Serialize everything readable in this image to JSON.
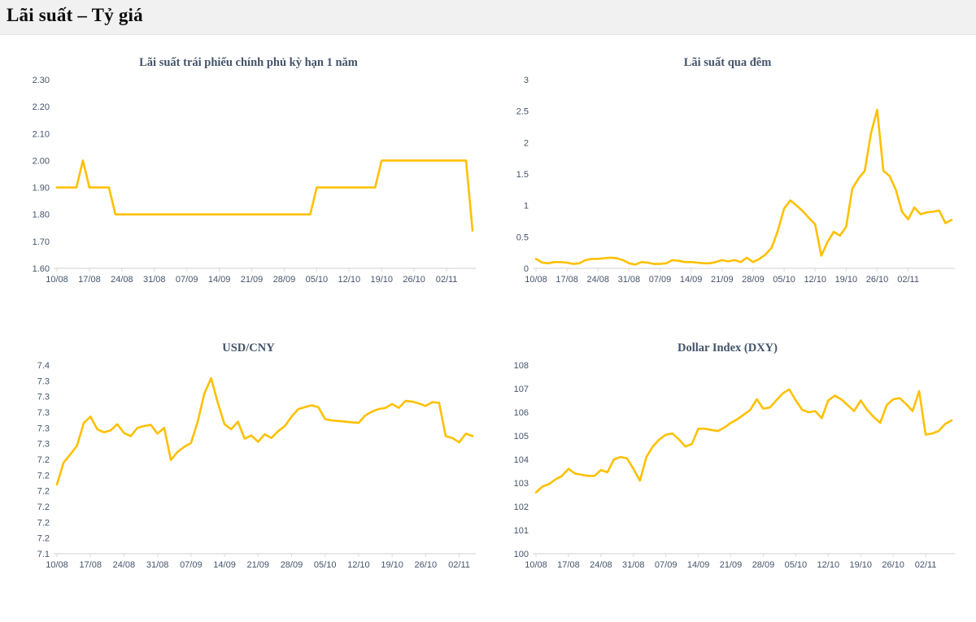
{
  "header": {
    "title": "Lãi suất – Tỷ giá"
  },
  "axis_style": {
    "label_color": "#44546A",
    "axis_line_color": "#D9D9D9"
  },
  "chart_data": [
    {
      "id": "bond-yield-1y",
      "type": "line",
      "title": "Lãi suất trái phiếu chính phủ kỳ hạn 1 năm",
      "color": "#FFC000",
      "legend": "none",
      "grid": false,
      "xlabel": "",
      "ylabel": "",
      "x_tick_labels": [
        "10/08",
        "17/08",
        "24/08",
        "31/08",
        "07/09",
        "14/09",
        "21/09",
        "28/09",
        "05/10",
        "12/10",
        "19/10",
        "26/10",
        "02/11"
      ],
      "y_tick_labels": [
        "2.30",
        "2.20",
        "2.10",
        "2.00",
        "1.90",
        "1.80",
        "1.70",
        "1.60"
      ],
      "ylim": [
        1.6,
        2.3
      ],
      "values": [
        1.9,
        1.9,
        1.9,
        1.9,
        2.0,
        1.9,
        1.9,
        1.9,
        1.9,
        1.8,
        1.8,
        1.8,
        1.8,
        1.8,
        1.8,
        1.8,
        1.8,
        1.8,
        1.8,
        1.8,
        1.8,
        1.8,
        1.8,
        1.8,
        1.8,
        1.8,
        1.8,
        1.8,
        1.8,
        1.8,
        1.8,
        1.8,
        1.8,
        1.8,
        1.8,
        1.8,
        1.8,
        1.8,
        1.8,
        1.8,
        1.9,
        1.9,
        1.9,
        1.9,
        1.9,
        1.9,
        1.9,
        1.9,
        1.9,
        1.9,
        2.0,
        2.0,
        2.0,
        2.0,
        2.0,
        2.0,
        2.0,
        2.0,
        2.0,
        2.0,
        2.0,
        2.0,
        2.0,
        2.0,
        1.74
      ]
    },
    {
      "id": "overnight-rate",
      "type": "line",
      "title": "Lãi suất qua đêm",
      "color": "#FFC000",
      "legend": "none",
      "grid": false,
      "xlabel": "",
      "ylabel": "",
      "x_tick_labels": [
        "10/08",
        "17/08",
        "24/08",
        "31/08",
        "07/09",
        "14/09",
        "21/09",
        "28/09",
        "05/10",
        "12/10",
        "19/10",
        "26/10",
        "02/11"
      ],
      "y_tick_labels": [
        "3",
        "2.5",
        "2",
        "1.5",
        "1",
        "0.5",
        "0"
      ],
      "ylim": [
        0,
        3
      ],
      "values": [
        0.15,
        0.09,
        0.08,
        0.1,
        0.1,
        0.09,
        0.07,
        0.08,
        0.13,
        0.15,
        0.15,
        0.16,
        0.17,
        0.16,
        0.13,
        0.08,
        0.06,
        0.1,
        0.09,
        0.07,
        0.07,
        0.08,
        0.13,
        0.12,
        0.1,
        0.1,
        0.09,
        0.08,
        0.08,
        0.1,
        0.13,
        0.11,
        0.13,
        0.1,
        0.17,
        0.1,
        0.15,
        0.22,
        0.33,
        0.6,
        0.95,
        1.08,
        1.0,
        0.91,
        0.8,
        0.7,
        0.2,
        0.42,
        0.58,
        0.52,
        0.66,
        1.27,
        1.43,
        1.55,
        2.15,
        2.52,
        1.55,
        1.47,
        1.25,
        0.9,
        0.78,
        0.97,
        0.86,
        0.89,
        0.9,
        0.92,
        0.72,
        0.77
      ]
    },
    {
      "id": "usd-cny",
      "type": "line",
      "title": "USD/CNY",
      "color": "#FFC000",
      "legend": "none",
      "grid": false,
      "xlabel": "",
      "ylabel": "",
      "x_tick_labels": [
        "10/08",
        "17/08",
        "24/08",
        "31/08",
        "07/09",
        "14/09",
        "21/09",
        "28/09",
        "05/10",
        "12/10",
        "19/10",
        "26/10",
        "02/11"
      ],
      "y_tick_labels": [
        "7.4",
        "7.3",
        "7.3",
        "7.3",
        "7.3",
        "7.3",
        "7.2",
        "7.2",
        "7.2",
        "7.2",
        "7.2",
        "7.2",
        "7.1"
      ],
      "ylim": [
        7.1,
        7.4
      ],
      "values": [
        7.21,
        7.245,
        7.258,
        7.272,
        7.308,
        7.318,
        7.298,
        7.293,
        7.296,
        7.306,
        7.292,
        7.287,
        7.3,
        7.303,
        7.305,
        7.291,
        7.3,
        7.249,
        7.262,
        7.27,
        7.276,
        7.31,
        7.355,
        7.379,
        7.34,
        7.306,
        7.298,
        7.31,
        7.283,
        7.288,
        7.278,
        7.29,
        7.284,
        7.295,
        7.303,
        7.318,
        7.33,
        7.333,
        7.336,
        7.333,
        7.314,
        7.312,
        7.311,
        7.31,
        7.309,
        7.308,
        7.32,
        7.326,
        7.33,
        7.332,
        7.338,
        7.332,
        7.343,
        7.342,
        7.339,
        7.335,
        7.341,
        7.34,
        7.287,
        7.284,
        7.277,
        7.291,
        7.287
      ]
    },
    {
      "id": "dollar-index-dxy",
      "type": "line",
      "title": "Dollar Index (DXY)",
      "color": "#FFC000",
      "legend": "none",
      "grid": false,
      "xlabel": "",
      "ylabel": "",
      "x_tick_labels": [
        "10/08",
        "17/08",
        "24/08",
        "31/08",
        "07/09",
        "14/09",
        "21/09",
        "28/09",
        "05/10",
        "12/10",
        "19/10",
        "26/10",
        "02/11"
      ],
      "y_tick_labels": [
        "108",
        "107",
        "106",
        "105",
        "104",
        "103",
        "102",
        "101",
        "100"
      ],
      "ylim": [
        100,
        108
      ],
      "values": [
        102.6,
        102.85,
        102.95,
        103.15,
        103.3,
        103.6,
        103.4,
        103.35,
        103.3,
        103.3,
        103.55,
        103.45,
        104.0,
        104.1,
        104.05,
        103.6,
        103.1,
        104.1,
        104.55,
        104.85,
        105.05,
        105.1,
        104.85,
        104.55,
        104.65,
        105.3,
        105.3,
        105.25,
        105.2,
        105.35,
        105.55,
        105.7,
        105.9,
        106.1,
        106.55,
        106.15,
        106.2,
        106.5,
        106.8,
        106.97,
        106.5,
        106.1,
        106.0,
        106.05,
        105.75,
        106.5,
        106.7,
        106.55,
        106.3,
        106.05,
        106.5,
        106.1,
        105.8,
        105.55,
        106.3,
        106.55,
        106.6,
        106.35,
        106.05,
        106.9,
        105.05,
        105.1,
        105.2,
        105.5,
        105.65
      ]
    }
  ]
}
